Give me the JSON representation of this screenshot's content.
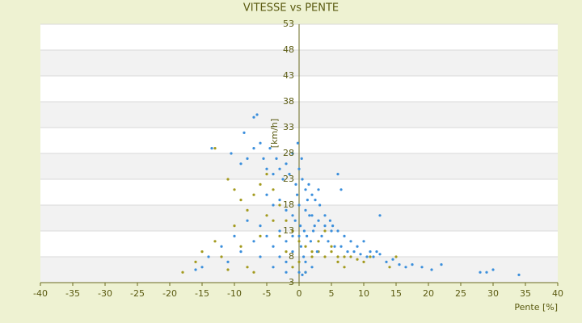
{
  "chart_data": {
    "type": "scatter",
    "title": "VITESSE vs PENTE",
    "x_label": "Pente [%]",
    "y_label": "[km/h]",
    "xlim": [
      -40,
      40
    ],
    "xticks": [
      -40,
      -35,
      -30,
      -25,
      -20,
      -15,
      -10,
      -5,
      0,
      5,
      10,
      15,
      20,
      25,
      30,
      35,
      40
    ],
    "ylim": [
      3,
      53
    ],
    "yticks": [
      3,
      8,
      13,
      18,
      23,
      28,
      33,
      38,
      43,
      48,
      53
    ],
    "grid": true,
    "series": [
      {
        "color": "#a39a1e",
        "x": [
          -13,
          -11,
          -10,
          -9,
          -8,
          -7,
          -6,
          -5,
          -4,
          -3,
          -2,
          -1,
          0,
          1,
          2,
          3,
          4,
          5,
          6,
          7,
          8,
          9,
          10,
          11,
          -18,
          -16,
          -15,
          -13,
          -12,
          -10,
          -9,
          -8,
          -6,
          -5,
          -4,
          -3,
          -2,
          -1,
          0,
          1,
          2,
          3,
          4,
          5,
          6,
          7,
          15,
          14,
          -7,
          -11
        ],
        "values": [
          29,
          23,
          21,
          19,
          17,
          20,
          22,
          24,
          21,
          18,
          15,
          13,
          11,
          10,
          9,
          9,
          8,
          9,
          8,
          8,
          8,
          7.5,
          7,
          8,
          5,
          7,
          9,
          11,
          8,
          14,
          10,
          6,
          12,
          16,
          15,
          12,
          9,
          6,
          7,
          5,
          8,
          11,
          13,
          10,
          7,
          6,
          8,
          6,
          5,
          5.5
        ]
      },
      {
        "color": "#3b8fdc",
        "x": [
          -7,
          -6.5,
          -8.5,
          -13.5,
          -10.5,
          -9,
          -8,
          -7,
          -6,
          -5.5,
          -5,
          -4.5,
          -4,
          -3.5,
          -3,
          -2.5,
          -2,
          -1.5,
          -1,
          -0.5,
          0,
          0.5,
          1,
          1.5,
          2,
          2.5,
          3,
          -5,
          -4,
          -3,
          -2,
          -1,
          0,
          1,
          2,
          3,
          4,
          5,
          6,
          -6,
          -5,
          -3,
          -2,
          -1,
          0.2,
          0.8,
          1.2,
          1.8,
          2.2,
          3.5,
          4.5,
          5.5,
          6.5,
          7.5,
          8.5,
          9.5,
          10.5,
          11.5,
          12.5,
          13.5,
          14.5,
          15.5,
          16.5,
          17.5,
          19,
          20.5,
          22,
          28,
          29,
          30,
          34,
          -9,
          -11,
          -12,
          -14,
          -15,
          -16,
          -10,
          -8,
          -7,
          -6,
          -4,
          -2,
          0,
          0.5,
          1,
          -0.3,
          -0.6,
          0.3,
          0.7,
          1.3,
          1.6,
          2.4,
          2.8,
          3.2,
          4,
          4.8,
          5.2,
          6,
          7,
          8,
          9,
          10,
          11,
          12,
          -1,
          -2,
          -3,
          -4,
          0,
          1,
          2,
          0.4,
          -0.2,
          6.5,
          12.5
        ],
        "values": [
          35,
          35.5,
          32,
          29,
          28,
          26,
          27,
          29,
          30,
          27,
          25,
          29,
          24,
          27,
          25,
          23,
          26,
          24,
          28,
          22,
          25,
          23,
          21,
          22,
          20,
          19,
          21,
          20,
          18,
          19,
          17,
          16,
          18,
          17,
          16,
          15,
          14,
          13,
          24,
          14,
          12,
          13,
          11,
          12,
          14,
          13,
          12,
          11,
          13,
          12,
          11,
          10,
          10,
          9,
          9,
          8.5,
          8,
          8,
          8.5,
          7,
          7.5,
          6.5,
          6,
          6.5,
          6,
          5.5,
          6.5,
          5,
          5,
          5.5,
          4.5,
          9,
          7,
          10,
          8,
          6,
          5.5,
          12,
          15,
          11,
          8,
          6,
          5,
          5,
          4.5,
          5,
          20,
          15,
          10,
          8,
          19,
          16,
          14,
          9,
          18,
          16,
          15,
          14,
          13,
          12,
          11,
          10,
          11,
          9,
          9,
          9,
          7,
          8,
          10,
          12,
          7,
          6,
          27,
          30,
          21,
          16
        ]
      }
    ]
  }
}
